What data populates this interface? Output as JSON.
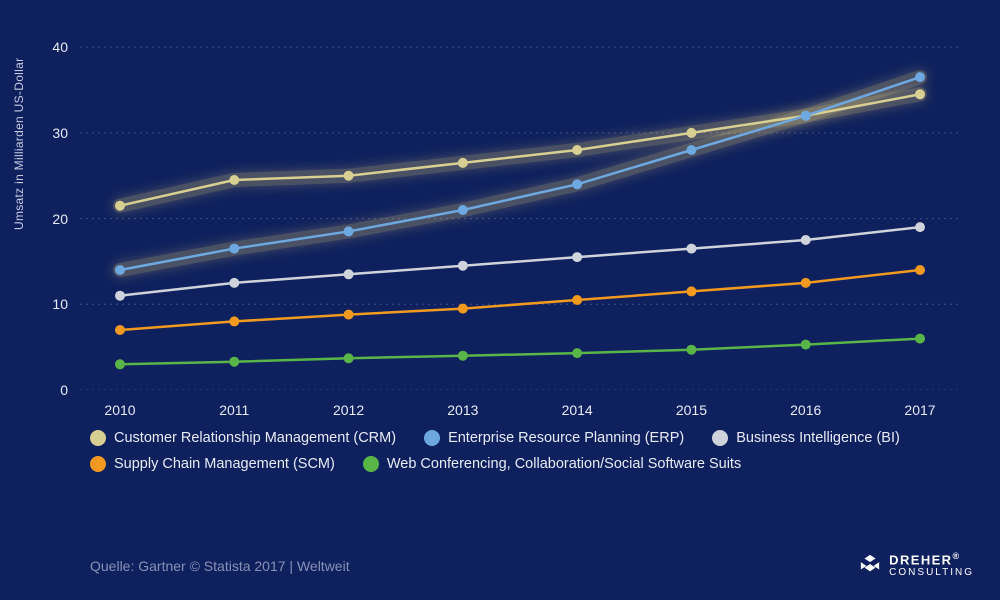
{
  "background_color": "#0e205d",
  "grid_color": "#6c7aa8",
  "axis_color": "#ffffff",
  "text_color": "#e8ebf5",
  "muted_text_color": "#8891b5",
  "y_axis_label": "Umsatz in Milliarden US-Dollar",
  "y_axis_label_fontsize": 12,
  "font_family": "Helvetica Neue, Arial, sans-serif",
  "xlim": [
    2010,
    2017
  ],
  "ylim": [
    0,
    42
  ],
  "y_ticks": [
    0,
    10,
    20,
    30,
    40
  ],
  "x_categories": [
    "2010",
    "2011",
    "2012",
    "2013",
    "2014",
    "2015",
    "2016",
    "2017"
  ],
  "x_fontsize": 14,
  "y_fontsize": 14,
  "grid_dash": "2,4",
  "line_width": 2.5,
  "marker_radius": 5,
  "highlight_series": [
    0,
    1
  ],
  "highlight_glow_color": "#ffe27a",
  "series": [
    {
      "name": "Customer Relationship Management (CRM)",
      "color": "#d8cf92",
      "values": [
        21.5,
        24.5,
        25.0,
        26.5,
        28.0,
        30.0,
        32.0,
        34.5
      ]
    },
    {
      "name": "Enterprise Resource Planning (ERP)",
      "color": "#6ea8e0",
      "values": [
        14.0,
        16.5,
        18.5,
        21.0,
        24.0,
        28.0,
        32.0,
        36.5
      ]
    },
    {
      "name": "Business Intelligence (BI)",
      "color": "#cfd3dc",
      "values": [
        11.0,
        12.5,
        13.5,
        14.5,
        15.5,
        16.5,
        17.5,
        19.0
      ]
    },
    {
      "name": "Supply Chain Management (SCM)",
      "color": "#f19a1f",
      "values": [
        7.0,
        8.0,
        8.8,
        9.5,
        10.5,
        11.5,
        12.5,
        14.0
      ]
    },
    {
      "name": "Web Conferencing, Collaboration/Social Software Suits",
      "color": "#59b547",
      "values": [
        3.0,
        3.3,
        3.7,
        4.0,
        4.3,
        4.7,
        5.3,
        6.0
      ]
    }
  ],
  "legend_fontsize": 14.5,
  "source_text": "Quelle: Gartner © Statista 2017 | Weltweit",
  "brand": {
    "name": "DREHER",
    "sub": "CONSULTING",
    "mark_color": "#ffffff"
  }
}
